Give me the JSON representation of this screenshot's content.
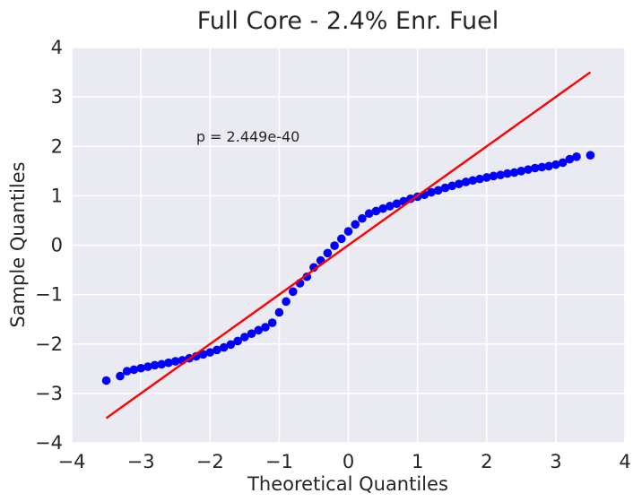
{
  "chart_data": {
    "type": "scatter",
    "title": "Full Core - 2.4% Enr. Fuel",
    "xlabel": "Theoretical Quantiles",
    "ylabel": "Sample Quantiles",
    "annotation": {
      "text": "p = 2.449e-40",
      "x": -2.2,
      "y": 2.2
    },
    "xlim": [
      -4,
      4
    ],
    "ylim": [
      -4,
      4
    ],
    "xticks": [
      -4,
      -3,
      -2,
      -1,
      0,
      1,
      2,
      3,
      4
    ],
    "yticks": [
      -4,
      -3,
      -2,
      -1,
      0,
      1,
      2,
      3,
      4
    ],
    "xtick_labels": [
      "−4",
      "−3",
      "−2",
      "−1",
      "0",
      "1",
      "2",
      "3",
      "4"
    ],
    "ytick_labels": [
      "−4",
      "−3",
      "−2",
      "−1",
      "0",
      "1",
      "2",
      "3",
      "4"
    ],
    "grid": true,
    "background_color": "#eaeaf2",
    "grid_color": "#ffffff",
    "marker_color": "#0000ff",
    "line_color": "#ff0000",
    "reference_line": {
      "x": [
        -3.5,
        3.5
      ],
      "y": [
        -3.5,
        3.5
      ]
    },
    "series": [
      {
        "x": [
          -3.5,
          -3.3,
          -3.2,
          -3.1,
          -3.0,
          -2.9,
          -2.8,
          -2.7,
          -2.6,
          -2.5,
          -2.4,
          -2.3,
          -2.2,
          -2.1,
          -2.0,
          -1.9,
          -1.8,
          -1.7,
          -1.6,
          -1.5,
          -1.4,
          -1.3,
          -1.2,
          -1.1,
          -1.0,
          -0.9,
          -0.8,
          -0.7,
          -0.6,
          -0.5,
          -0.4,
          -0.3,
          -0.2,
          -0.1,
          0.0,
          0.1,
          0.2,
          0.3,
          0.4,
          0.5,
          0.6,
          0.7,
          0.8,
          0.9,
          1.0,
          1.1,
          1.2,
          1.3,
          1.4,
          1.5,
          1.6,
          1.7,
          1.8,
          1.9,
          2.0,
          2.1,
          2.2,
          2.3,
          2.4,
          2.5,
          2.6,
          2.7,
          2.8,
          2.9,
          3.0,
          3.1,
          3.2,
          3.3,
          3.5
        ],
        "y": [
          -2.74,
          -2.65,
          -2.55,
          -2.52,
          -2.49,
          -2.46,
          -2.43,
          -2.41,
          -2.38,
          -2.35,
          -2.33,
          -2.29,
          -2.25,
          -2.21,
          -2.17,
          -2.12,
          -2.07,
          -2.01,
          -1.94,
          -1.86,
          -1.79,
          -1.72,
          -1.66,
          -1.57,
          -1.36,
          -1.14,
          -0.94,
          -0.77,
          -0.64,
          -0.45,
          -0.31,
          -0.16,
          -0.01,
          0.13,
          0.28,
          0.42,
          0.54,
          0.64,
          0.69,
          0.74,
          0.79,
          0.84,
          0.89,
          0.94,
          0.98,
          1.02,
          1.07,
          1.11,
          1.16,
          1.2,
          1.24,
          1.28,
          1.31,
          1.34,
          1.37,
          1.4,
          1.42,
          1.45,
          1.47,
          1.5,
          1.53,
          1.56,
          1.58,
          1.6,
          1.63,
          1.67,
          1.74,
          1.79,
          1.82
        ]
      }
    ]
  }
}
